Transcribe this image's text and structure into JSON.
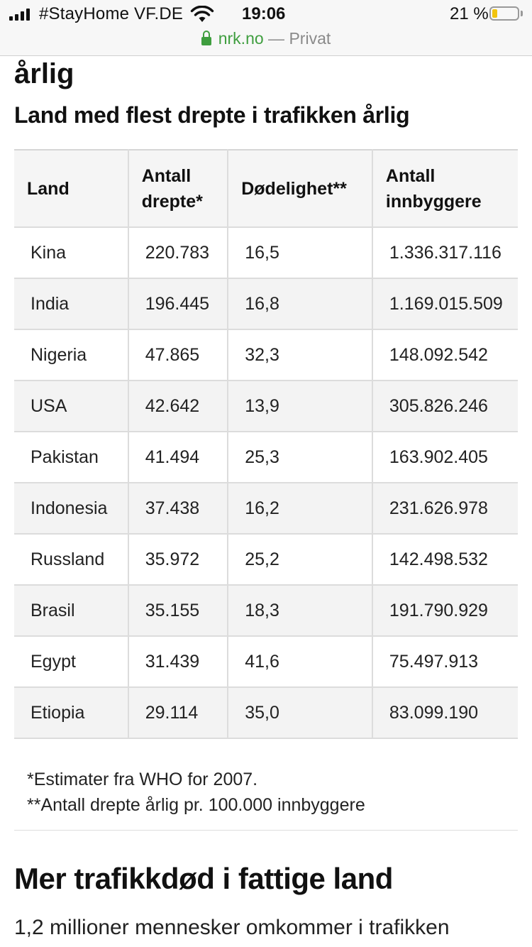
{
  "status_bar": {
    "carrier": "#StayHome VF.DE",
    "time": "19:06",
    "battery_percent": "21 %",
    "battery_level": 0.21
  },
  "browser": {
    "domain": "nrk.no",
    "separator": " — ",
    "mode": "Privat"
  },
  "article": {
    "heading_fragment": "årlig",
    "table_title": "Land med flest drepte i trafikken årlig",
    "table": {
      "headers": {
        "land": "Land",
        "antall_drepte": "Antall drepte*",
        "dodelighet": "Dødelighet**",
        "innbyggere": "Antall innbyggere"
      },
      "rows": [
        {
          "land": "Kina",
          "drepte": "220.783",
          "dodelighet": "16,5",
          "innbyggere": "1.336.317.116"
        },
        {
          "land": "India",
          "drepte": "196.445",
          "dodelighet": "16,8",
          "innbyggere": "1.169.015.509"
        },
        {
          "land": "Nigeria",
          "drepte": "47.865",
          "dodelighet": "32,3",
          "innbyggere": "148.092.542"
        },
        {
          "land": "USA",
          "drepte": "42.642",
          "dodelighet": "13,9",
          "innbyggere": "305.826.246"
        },
        {
          "land": "Pakistan",
          "drepte": "41.494",
          "dodelighet": "25,3",
          "innbyggere": "163.902.405"
        },
        {
          "land": "Indonesia",
          "drepte": "37.438",
          "dodelighet": "16,2",
          "innbyggere": "231.626.978"
        },
        {
          "land": "Russland",
          "drepte": "35.972",
          "dodelighet": "25,2",
          "innbyggere": "142.498.532"
        },
        {
          "land": "Brasil",
          "drepte": "35.155",
          "dodelighet": "18,3",
          "innbyggere": "191.790.929"
        },
        {
          "land": "Egypt",
          "drepte": "31.439",
          "dodelighet": "41,6",
          "innbyggere": "75.497.913"
        },
        {
          "land": "Etiopia",
          "drepte": "29.114",
          "dodelighet": "35,0",
          "innbyggere": "83.099.190"
        }
      ]
    },
    "notes": [
      "*Estimater fra WHO for 2007.",
      "**Antall drepte årlig pr. 100.000 innbyggere"
    ],
    "section_heading": "Mer trafikkdød i fattige land",
    "body_text": "1,2 millioner mennesker omkommer i trafikken"
  }
}
